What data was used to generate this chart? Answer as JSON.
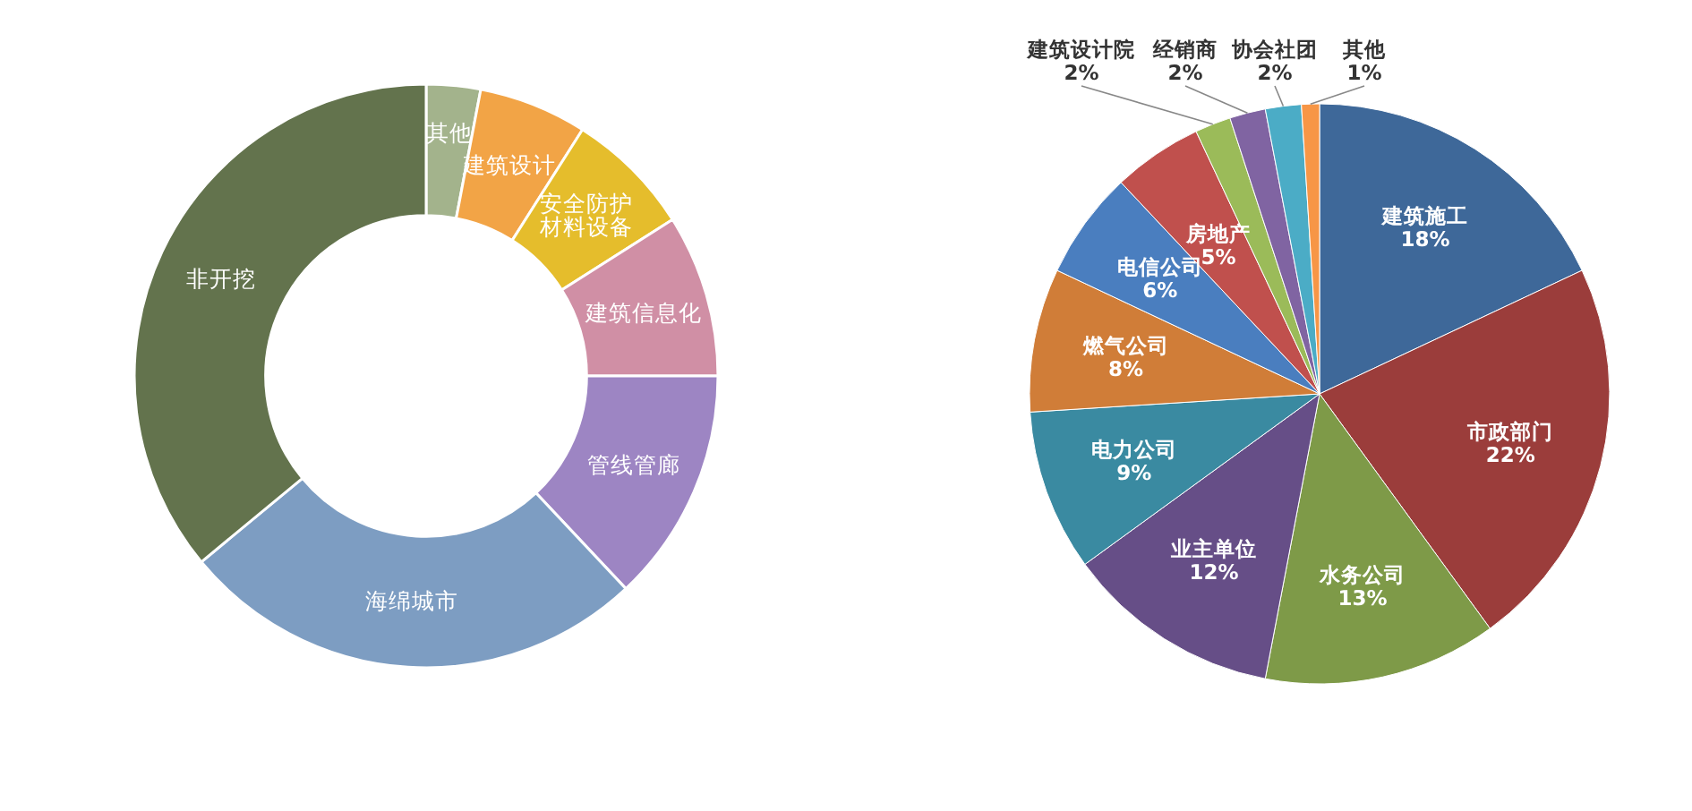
{
  "chart_data": [
    {
      "type": "donut",
      "categories": [
        "其他",
        "建筑设计",
        "安全防护材料设备",
        "建筑信息化",
        "管线管廊",
        "海绵城市",
        "非开挖"
      ],
      "values": [
        3,
        6,
        7,
        9,
        13,
        26,
        36
      ],
      "colors": [
        "#a3b38c",
        "#f2a446",
        "#e5bd2c",
        "#d08fa5",
        "#9d85c3",
        "#7d9dc2",
        "#63734d"
      ]
    },
    {
      "type": "pie",
      "categories": [
        "建筑施工",
        "市政部门",
        "水务公司",
        "业主单位",
        "电力公司",
        "燃气公司",
        "电信公司",
        "房地产",
        "建筑设计院",
        "经销商",
        "协会社团",
        "其他"
      ],
      "values": [
        18,
        22,
        13,
        12,
        9,
        8,
        6,
        5,
        2,
        2,
        2,
        1
      ],
      "value_labels": [
        "18%",
        "22%",
        "13%",
        "12%",
        "9%",
        "8%",
        "6%",
        "5%",
        "2%",
        "2%",
        "2%",
        "1%"
      ],
      "colors": [
        "#3e6899",
        "#9b3d3b",
        "#7e9a48",
        "#664e87",
        "#3a8aa1",
        "#d07d38",
        "#4a7ebf",
        "#c0504d",
        "#9bbb59",
        "#8064a2",
        "#4bacc6",
        "#f79646"
      ]
    }
  ]
}
